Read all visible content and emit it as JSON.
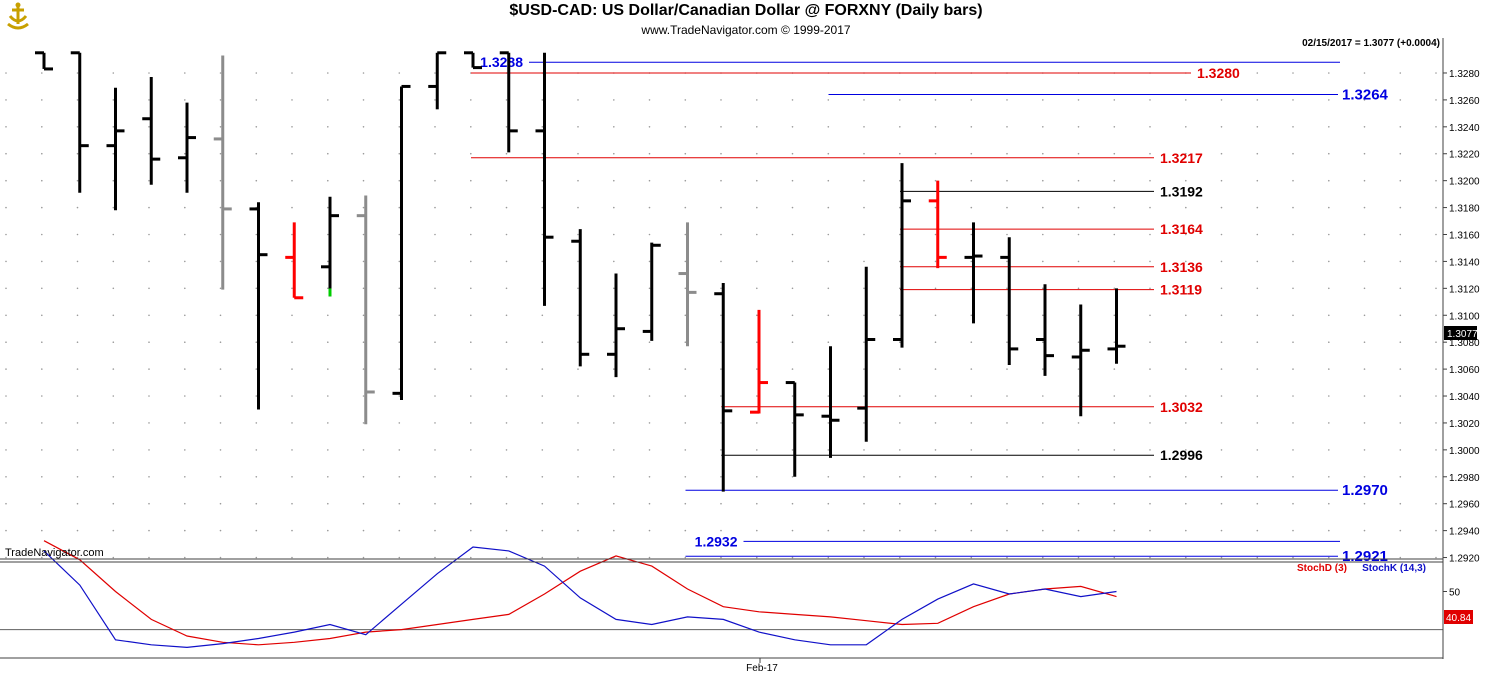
{
  "header": {
    "title": "$USD-CAD:  US Dollar/Canadian Dollar @ FORXNY  (Daily bars)",
    "subtitle": "www.TradeNavigator.com © 1999-2017"
  },
  "status": {
    "quote": "02/15/2017 = 1.3077 (+0.0004)",
    "watermark": "TradeNavigator.com",
    "current_price": "1.3077",
    "stoch_value": "40.84"
  },
  "colors": {
    "background": "#ffffff",
    "axis": "#404040",
    "grid_dot": "#9a9a9a",
    "bar_black": "#000000",
    "bar_gray": "#8c8c8c",
    "bar_red": "#ff0000",
    "bar_green": "#00cc00",
    "line_red": "#e00000",
    "line_blue": "#0000e0",
    "line_black": "#000000",
    "stoch_d": "#e00000",
    "stoch_k": "#1010c8"
  },
  "chart_data": [
    {
      "type": "ohlc",
      "title": "$USD-CAD:  US Dollar/Canadian Dollar @ FORXNY  (Daily bars)",
      "ylim": [
        1.291,
        1.3303
      ],
      "y_ticks": [
        "1.2920",
        "1.2940",
        "1.2960",
        "1.2980",
        "1.3000",
        "1.3020",
        "1.3040",
        "1.3060",
        "1.3080",
        "1.3100",
        "1.3120",
        "1.3140",
        "1.3160",
        "1.3180",
        "1.3200",
        "1.3220",
        "1.3240",
        "1.3260",
        "1.3280"
      ],
      "x_label": "Feb-17",
      "bars": [
        {
          "o": 1.3295,
          "h": 1.3295,
          "l": 1.3283,
          "c": 1.3283,
          "color": "black"
        },
        {
          "o": 1.3295,
          "h": 1.3295,
          "l": 1.3191,
          "c": 1.3226,
          "color": "black"
        },
        {
          "o": 1.3226,
          "h": 1.3269,
          "l": 1.3178,
          "c": 1.3237,
          "color": "black"
        },
        {
          "o": 1.3246,
          "h": 1.3277,
          "l": 1.3197,
          "c": 1.3216,
          "color": "black"
        },
        {
          "o": 1.3217,
          "h": 1.3258,
          "l": 1.3191,
          "c": 1.3232,
          "color": "black"
        },
        {
          "o": 1.3231,
          "h": 1.3293,
          "l": 1.3119,
          "c": 1.3179,
          "color": "gray"
        },
        {
          "o": 1.3179,
          "h": 1.3184,
          "l": 1.303,
          "c": 1.3145,
          "color": "black"
        },
        {
          "o": 1.3143,
          "h": 1.3169,
          "l": 1.3113,
          "c": 1.3113,
          "color": "red"
        },
        {
          "o": 1.3136,
          "h": 1.3188,
          "l": 1.3114,
          "c": 1.3174,
          "color": "black",
          "tail": "green"
        },
        {
          "o": 1.3174,
          "h": 1.3189,
          "l": 1.3019,
          "c": 1.3043,
          "color": "gray"
        },
        {
          "o": 1.3042,
          "h": 1.327,
          "l": 1.3037,
          "c": 1.327,
          "color": "black"
        },
        {
          "o": 1.327,
          "h": 1.3295,
          "l": 1.3253,
          "c": 1.3295,
          "color": "black"
        },
        {
          "o": 1.3295,
          "h": 1.3295,
          "l": 1.3284,
          "c": 1.3284,
          "color": "black"
        },
        {
          "o": 1.3295,
          "h": 1.3295,
          "l": 1.3221,
          "c": 1.3237,
          "color": "black"
        },
        {
          "o": 1.3237,
          "h": 1.3295,
          "l": 1.3107,
          "c": 1.3158,
          "color": "black"
        },
        {
          "o": 1.3155,
          "h": 1.3164,
          "l": 1.3062,
          "c": 1.3071,
          "color": "black"
        },
        {
          "o": 1.3071,
          "h": 1.3131,
          "l": 1.3054,
          "c": 1.309,
          "color": "black"
        },
        {
          "o": 1.3088,
          "h": 1.3154,
          "l": 1.3081,
          "c": 1.3152,
          "color": "black"
        },
        {
          "o": 1.3131,
          "h": 1.3169,
          "l": 1.3077,
          "c": 1.3117,
          "color": "gray"
        },
        {
          "o": 1.3116,
          "h": 1.3124,
          "l": 1.2969,
          "c": 1.3029,
          "color": "black"
        },
        {
          "o": 1.3028,
          "h": 1.3104,
          "l": 1.3027,
          "c": 1.305,
          "color": "red"
        },
        {
          "o": 1.305,
          "h": 1.305,
          "l": 1.298,
          "c": 1.3026,
          "color": "black"
        },
        {
          "o": 1.3025,
          "h": 1.3077,
          "l": 1.2994,
          "c": 1.3022,
          "color": "black"
        },
        {
          "o": 1.3031,
          "h": 1.3136,
          "l": 1.3006,
          "c": 1.3082,
          "color": "black"
        },
        {
          "o": 1.3082,
          "h": 1.3213,
          "l": 1.3076,
          "c": 1.3185,
          "color": "black"
        },
        {
          "o": 1.3185,
          "h": 1.32,
          "l": 1.3135,
          "c": 1.3143,
          "color": "red"
        },
        {
          "o": 1.3143,
          "h": 1.3169,
          "l": 1.3094,
          "c": 1.3144,
          "color": "black"
        },
        {
          "o": 1.3143,
          "h": 1.3158,
          "l": 1.3063,
          "c": 1.3075,
          "color": "black"
        },
        {
          "o": 1.3082,
          "h": 1.3123,
          "l": 1.3055,
          "c": 1.307,
          "color": "black"
        },
        {
          "o": 1.3069,
          "h": 1.3108,
          "l": 1.3025,
          "c": 1.3074,
          "color": "black"
        },
        {
          "o": 1.3075,
          "h": 1.312,
          "l": 1.3064,
          "c": 1.3077,
          "color": "black"
        }
      ],
      "levels": [
        {
          "value": 1.3288,
          "label": "1.3288",
          "color": "blue",
          "from_bar": 12,
          "label_side": "left"
        },
        {
          "value": 1.328,
          "label": "1.3280",
          "color": "red",
          "from_bar": 12,
          "label_side": "right"
        },
        {
          "value": 1.3264,
          "label": "1.3264",
          "color": "blue",
          "from_bar": 22,
          "label_side": "right"
        },
        {
          "value": 1.3217,
          "label": "1.3217",
          "color": "red",
          "from_bar": 12,
          "label_side": "right"
        },
        {
          "value": 1.3192,
          "label": "1.3192",
          "color": "black",
          "from_bar": 24,
          "label_side": "right"
        },
        {
          "value": 1.3164,
          "label": "1.3164",
          "color": "red",
          "from_bar": 24,
          "label_side": "right"
        },
        {
          "value": 1.3136,
          "label": "1.3136",
          "color": "red",
          "from_bar": 24,
          "label_side": "right"
        },
        {
          "value": 1.3119,
          "label": "1.3119",
          "color": "red",
          "from_bar": 24,
          "label_side": "right"
        },
        {
          "value": 1.3032,
          "label": "1.3032",
          "color": "red",
          "from_bar": 19,
          "label_side": "right"
        },
        {
          "value": 1.2996,
          "label": "1.2996",
          "color": "black",
          "from_bar": 19,
          "label_side": "right"
        },
        {
          "value": 1.297,
          "label": "1.2970",
          "color": "blue",
          "from_bar": 18,
          "label_side": "right"
        },
        {
          "value": 1.2932,
          "label": "1.2932",
          "color": "blue",
          "from_bar": 18,
          "label_side": "left"
        },
        {
          "value": 1.2921,
          "label": "1.2921",
          "color": "blue",
          "from_bar": 18,
          "label_side": "right"
        }
      ]
    },
    {
      "type": "line",
      "ylim": [
        0,
        100
      ],
      "y_ticks": [
        "50"
      ],
      "reference_line": 20,
      "series": [
        {
          "name": "StochD (3)",
          "color": "red",
          "values": [
            90,
            75,
            50,
            28,
            15,
            10,
            8,
            10,
            13,
            18,
            20,
            24,
            28,
            32,
            48,
            66,
            78,
            70,
            52,
            38,
            34,
            32,
            30,
            27,
            24,
            25,
            38,
            48,
            52,
            54,
            46
          ]
        },
        {
          "name": "StochK (14,3)",
          "color": "blue",
          "values": [
            82,
            55,
            12,
            8,
            6,
            9,
            13,
            18,
            24,
            16,
            40,
            64,
            85,
            82,
            70,
            45,
            28,
            24,
            30,
            28,
            18,
            12,
            8,
            8,
            28,
            44,
            56,
            48,
            52,
            46,
            50
          ]
        }
      ]
    }
  ]
}
